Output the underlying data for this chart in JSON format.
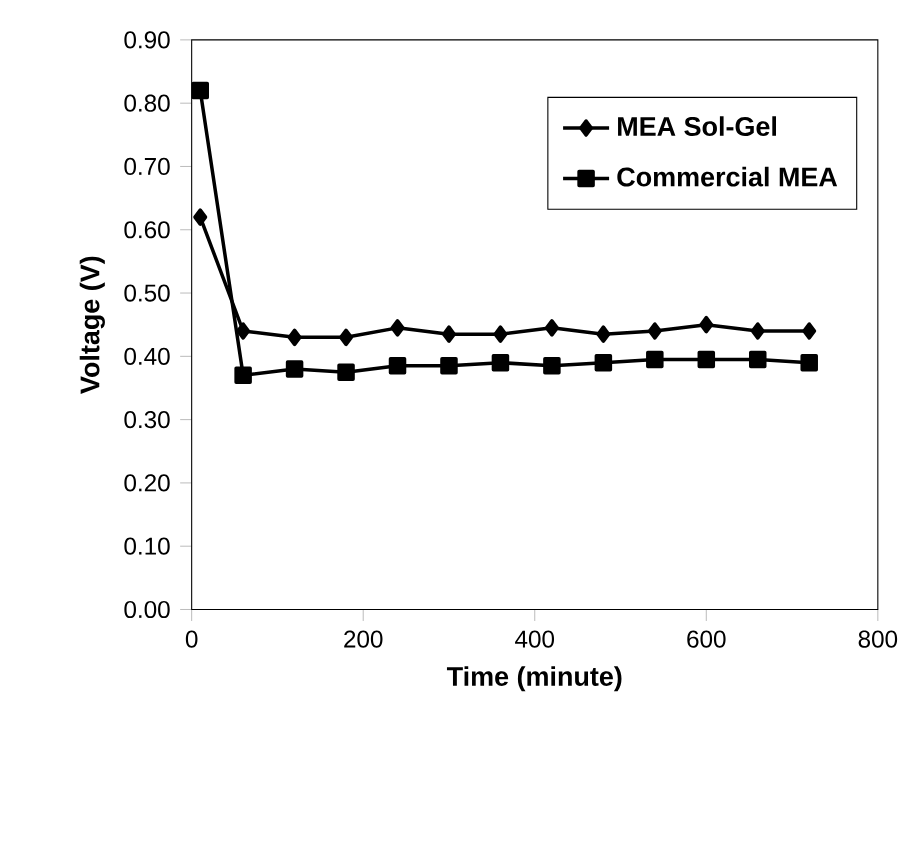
{
  "chart_data": {
    "type": "line",
    "xlabel": "Time (minute)",
    "ylabel": "Voltage (V)",
    "x": [
      10,
      60,
      120,
      180,
      240,
      300,
      360,
      420,
      480,
      540,
      600,
      660,
      720
    ],
    "series": [
      {
        "name": "MEA Sol-Gel",
        "color": "#000000",
        "marker": "diamond",
        "values": [
          0.62,
          0.44,
          0.43,
          0.43,
          0.445,
          0.435,
          0.435,
          0.445,
          0.435,
          0.44,
          0.45,
          0.44,
          0.44
        ]
      },
      {
        "name": "Commercial MEA",
        "color": "#000000",
        "marker": "square",
        "values": [
          0.82,
          0.37,
          0.38,
          0.375,
          0.385,
          0.385,
          0.39,
          0.385,
          0.39,
          0.395,
          0.395,
          0.395,
          0.39
        ]
      }
    ],
    "xlim": [
      0,
      800
    ],
    "xticks": [
      0,
      200,
      400,
      600,
      800
    ],
    "ylim": [
      0,
      0.9
    ],
    "yticks": [
      {
        "value": 0,
        "label": "0.00"
      },
      {
        "value": 0.1,
        "label": "0.10"
      },
      {
        "value": 0.2,
        "label": "0.20"
      },
      {
        "value": 0.3,
        "label": "0.30"
      },
      {
        "value": 0.4,
        "label": "0.40"
      },
      {
        "value": 0.5,
        "label": "0.50"
      },
      {
        "value": 0.6,
        "label": "0.60"
      },
      {
        "value": 0.7,
        "label": "0.70"
      },
      {
        "value": 0.8,
        "label": "0.80"
      },
      {
        "value": 0.9,
        "label": "0.90"
      }
    ],
    "grid": false,
    "legend": "top right",
    "line_style": "solid"
  }
}
